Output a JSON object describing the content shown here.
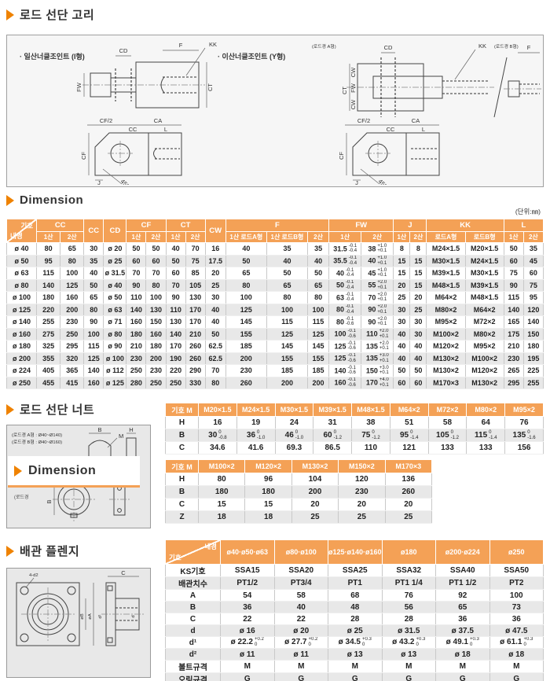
{
  "page": {
    "unit_note": "(단위:㎜)"
  },
  "sections": {
    "rod_end_ring": "로드 선단 고리",
    "dimension": "Dimension",
    "rod_end_nut": "로드 선단 너트",
    "dimension_overlay": "Dimension",
    "pipe_flange": "배관 플렌지"
  },
  "diagrams": {
    "knuckle_i_caption": "· 일산너클조인트 (I형)",
    "knuckle_y_caption": "· 이산너클조인트 (Y형)",
    "rod_a_note": "(로드경 A형)",
    "rod_b_note": "(로드경 B형)",
    "nut_note_a": "(로드경 A형 : Ø40~Ø140)",
    "nut_note_b": "(로드경 B형 : Ø40~Ø160)",
    "nut_partial": "(로드경"
  },
  "dim_labels": {
    "cd": "CD",
    "f": "F",
    "kk": "KK",
    "fw": "FW",
    "ct": "CT",
    "cw": "CW",
    "cf2": "CF/2",
    "ca": "CA",
    "cc": "CC",
    "l": "L",
    "cf": "CF",
    "j": "J",
    "deg": "45°"
  },
  "nut_labels": {
    "b": "B",
    "m": "M",
    "h": "H"
  },
  "flange_labels": {
    "bolt": "4-d2",
    "c": "C",
    "ob": "øB",
    "oa": "øA",
    "d1": "d¹",
    "d": "d"
  },
  "dimension_table": {
    "corner": {
      "top": "기호",
      "bottom": "내경"
    },
    "groups": [
      {
        "label": "CC",
        "cols": [
          "1산",
          "2산"
        ]
      },
      {
        "label": "CC",
        "cols": null
      },
      {
        "label": "CD",
        "cols": null
      },
      {
        "label": "CF",
        "cols": [
          "1산",
          "2산"
        ]
      },
      {
        "label": "CT",
        "cols": [
          "1산",
          "2산"
        ]
      },
      {
        "label": "CW",
        "cols": null
      },
      {
        "label": "F",
        "cols": [
          "1산 로드A형",
          "1산 로드B형",
          "2산"
        ]
      },
      {
        "label": "FW",
        "cols": [
          "1산",
          "2산"
        ]
      },
      {
        "label": "J",
        "cols": [
          "1산",
          "2산"
        ]
      },
      {
        "label": "KK",
        "cols": [
          "로드A형",
          "로드B형"
        ]
      },
      {
        "label": "L",
        "cols": [
          "1산",
          "2산"
        ]
      }
    ],
    "rows": [
      {
        "id": "ø 40",
        "cells": [
          "80",
          "65",
          "30",
          "ø 20",
          "50",
          "50",
          "40",
          "70",
          "16",
          "40",
          "35",
          "35",
          {
            "v": "31.5",
            "t": [
              "-0.1",
              "-0.4"
            ]
          },
          {
            "v": "38",
            "t": [
              "+1.0",
              "+0.1"
            ]
          },
          "8",
          "8",
          "M24×1.5",
          "M20×1.5",
          "50",
          "35"
        ]
      },
      {
        "id": "ø 50",
        "cells": [
          "95",
          "80",
          "35",
          "ø 25",
          "60",
          "60",
          "50",
          "75",
          "17.5",
          "50",
          "40",
          "40",
          {
            "v": "35.5",
            "t": [
              "-0.1",
              "-0.4"
            ]
          },
          {
            "v": "40",
            "t": [
              "+1.0",
              "+0.1"
            ]
          },
          "15",
          "15",
          "M30×1.5",
          "M24×1.5",
          "60",
          "45"
        ]
      },
      {
        "id": "ø 63",
        "cells": [
          "115",
          "100",
          "40",
          "ø 31.5",
          "70",
          "70",
          "60",
          "85",
          "20",
          "65",
          "50",
          "50",
          {
            "v": "40",
            "t": [
              "-0.1",
              "-0.4"
            ]
          },
          {
            "v": "45",
            "t": [
              "+1.0",
              "+0.1"
            ]
          },
          "15",
          "15",
          "M39×1.5",
          "M30×1.5",
          "75",
          "60"
        ]
      },
      {
        "id": "ø 80",
        "cells": [
          "140",
          "125",
          "50",
          "ø 40",
          "90",
          "80",
          "70",
          "105",
          "25",
          "80",
          "65",
          "65",
          {
            "v": "50",
            "t": [
              "-0.1",
              "-0.4"
            ]
          },
          {
            "v": "55",
            "t": [
              "+2.0",
              "+0.1"
            ]
          },
          "20",
          "15",
          "M48×1.5",
          "M39×1.5",
          "90",
          "75"
        ]
      },
      {
        "id": "ø 100",
        "cells": [
          "180",
          "160",
          "65",
          "ø 50",
          "110",
          "100",
          "90",
          "130",
          "30",
          "100",
          "80",
          "80",
          {
            "v": "63",
            "t": [
              "-0.1",
              "-0.4"
            ]
          },
          {
            "v": "70",
            "t": [
              "+2.0",
              "+0.1"
            ]
          },
          "25",
          "20",
          "M64×2",
          "M48×1.5",
          "115",
          "95"
        ]
      },
      {
        "id": "ø 125",
        "cells": [
          "220",
          "200",
          "80",
          "ø 63",
          "140",
          "130",
          "110",
          "170",
          "40",
          "125",
          "100",
          "100",
          {
            "v": "80",
            "t": [
              "-0.1",
              "-0.4"
            ]
          },
          {
            "v": "90",
            "t": [
              "+2.0",
              "+0.1"
            ]
          },
          "30",
          "25",
          "M80×2",
          "M64×2",
          "140",
          "120"
        ]
      },
      {
        "id": "ø 140",
        "cells": [
          "255",
          "230",
          "90",
          "ø 71",
          "160",
          "150",
          "130",
          "170",
          "40",
          "145",
          "115",
          "115",
          {
            "v": "80",
            "t": [
              "-0.1",
              "-0.6"
            ]
          },
          {
            "v": "90",
            "t": [
              "+2.0",
              "+0.1"
            ]
          },
          "30",
          "30",
          "M95×2",
          "M72×2",
          "165",
          "140"
        ]
      },
      {
        "id": "ø 160",
        "cells": [
          "275",
          "250",
          "100",
          "ø 80",
          "180",
          "160",
          "140",
          "210",
          "50",
          "155",
          "125",
          "125",
          {
            "v": "100",
            "t": [
              "-0.1",
              "-0.6"
            ]
          },
          {
            "v": "110",
            "t": [
              "+2.0",
              "+0.1"
            ]
          },
          "40",
          "30",
          "M100×2",
          "M80×2",
          "175",
          "150"
        ]
      },
      {
        "id": "ø 180",
        "cells": [
          "325",
          "295",
          "115",
          "ø 90",
          "210",
          "180",
          "170",
          "260",
          "62.5",
          "185",
          "145",
          "145",
          {
            "v": "125",
            "t": [
              "-0.1",
              "-0.6"
            ]
          },
          {
            "v": "135",
            "t": [
              "+2.0",
              "+0.1"
            ]
          },
          "40",
          "40",
          "M120×2",
          "M95×2",
          "210",
          "180"
        ]
      },
      {
        "id": "ø 200",
        "cells": [
          "355",
          "320",
          "125",
          "ø 100",
          "230",
          "200",
          "190",
          "260",
          "62.5",
          "200",
          "155",
          "155",
          {
            "v": "125",
            "t": [
              "-0.1",
              "-0.6"
            ]
          },
          {
            "v": "135",
            "t": [
              "+3.0",
              "+0.1"
            ]
          },
          "40",
          "40",
          "M130×2",
          "M100×2",
          "230",
          "195"
        ]
      },
      {
        "id": "ø 224",
        "cells": [
          "405",
          "365",
          "140",
          "ø 112",
          "250",
          "230",
          "220",
          "290",
          "70",
          "230",
          "185",
          "185",
          {
            "v": "140",
            "t": [
              "-0.1",
              "-0.6"
            ]
          },
          {
            "v": "150",
            "t": [
              "+3.0",
              "+0.1"
            ]
          },
          "50",
          "50",
          "M130×2",
          "M120×2",
          "265",
          "225"
        ]
      },
      {
        "id": "ø 250",
        "cells": [
          "455",
          "415",
          "160",
          "ø 125",
          "280",
          "250",
          "250",
          "330",
          "80",
          "260",
          "200",
          "200",
          {
            "v": "160",
            "t": [
              "-0.1",
              "-0.6"
            ]
          },
          {
            "v": "170",
            "t": [
              "+4.0",
              "+0.1"
            ]
          },
          "60",
          "60",
          "M170×3",
          "M130×2",
          "295",
          "255"
        ]
      }
    ]
  },
  "nut_table_1": {
    "corner": "기호 M",
    "headers": [
      "M20×1.5",
      "M24×1.5",
      "M30×1.5",
      "M39×1.5",
      "M48×1.5",
      "M64×2",
      "M72×2",
      "M80×2",
      "M95×2"
    ],
    "rows": [
      {
        "label": "H",
        "cells": [
          "16",
          "19",
          "24",
          "31",
          "38",
          "51",
          "58",
          "64",
          "76"
        ]
      },
      {
        "label": "B",
        "cells": [
          {
            "v": "30",
            "t": [
              "0",
              "-0.8"
            ]
          },
          {
            "v": "36",
            "t": [
              "0",
              "-1.0"
            ]
          },
          {
            "v": "46",
            "t": [
              "0",
              "-1.0"
            ]
          },
          {
            "v": "60",
            "t": [
              "0",
              "-1.2"
            ]
          },
          {
            "v": "75",
            "t": [
              "0",
              "-1.2"
            ]
          },
          {
            "v": "95",
            "t": [
              "0",
              "-1.4"
            ]
          },
          {
            "v": "105",
            "t": [
              "0",
              "-1.2"
            ]
          },
          {
            "v": "115",
            "t": [
              "0",
              "-1.4"
            ]
          },
          {
            "v": "135",
            "t": [
              "0",
              "-1.6"
            ]
          }
        ]
      },
      {
        "label": "C",
        "cells": [
          "34.6",
          "41.6",
          "69.3",
          "86.5",
          "110",
          "121",
          "133",
          "133",
          "156"
        ]
      }
    ]
  },
  "nut_table_2": {
    "corner": "기호 M",
    "headers": [
      "M100×2",
      "M120×2",
      "M130×2",
      "M150×2",
      "M170×3"
    ],
    "rows": [
      {
        "label": "H",
        "cells": [
          "80",
          "96",
          "104",
          "120",
          "136"
        ]
      },
      {
        "label": "B",
        "cells": [
          "180",
          "180",
          "200",
          "230",
          "260"
        ]
      },
      {
        "label": "C",
        "cells": [
          "15",
          "15",
          "20",
          "20",
          "20"
        ]
      },
      {
        "label": "Z",
        "cells": [
          "18",
          "18",
          "25",
          "25",
          "25"
        ]
      }
    ]
  },
  "flange_table": {
    "corner": {
      "top": "내경",
      "bottom": "기호"
    },
    "headers": [
      "ø40·ø50·ø63",
      "ø80·ø100",
      "ø125·ø140·ø160",
      "ø180",
      "ø200·ø224",
      "ø250"
    ],
    "rows": [
      {
        "label": "KS기호",
        "cells": [
          "SSA15",
          "SSA20",
          "SSA25",
          "SSA32",
          "SSA40",
          "SSA50"
        ]
      },
      {
        "label": "배관치수",
        "cells": [
          "PT1/2",
          "PT3/4",
          "PT1",
          "PT1 1/4",
          "PT1 1/2",
          "PT2"
        ]
      },
      {
        "label": "A",
        "cells": [
          "54",
          "58",
          "68",
          "76",
          "92",
          "100"
        ]
      },
      {
        "label": "B",
        "cells": [
          "36",
          "40",
          "48",
          "56",
          "65",
          "73"
        ]
      },
      {
        "label": "C",
        "cells": [
          "22",
          "22",
          "28",
          "28",
          "36",
          "36"
        ]
      },
      {
        "label": "d",
        "cells": [
          "ø 16",
          "ø 20",
          "ø 25",
          "ø 31.5",
          "ø 37.5",
          "ø 47.5"
        ]
      },
      {
        "label": "d¹",
        "cells": [
          {
            "v": "ø 22.2",
            "t": [
              "+0.2",
              "0"
            ]
          },
          {
            "v": "ø 27.7",
            "t": [
              "+0.2",
              "0"
            ]
          },
          {
            "v": "ø 34.5",
            "t": [
              "+0.3",
              "0"
            ]
          },
          {
            "v": "ø 43.2",
            "t": [
              "+0.3",
              "0"
            ]
          },
          {
            "v": "ø 49.1",
            "t": [
              "+0.3",
              "0"
            ]
          },
          {
            "v": "ø 61.1",
            "t": [
              "+0.3",
              "0"
            ]
          }
        ]
      },
      {
        "label": "d²",
        "cells": [
          "ø 11",
          "ø 11",
          "ø 13",
          "ø 13",
          "ø 18",
          "ø 18"
        ]
      },
      {
        "label": "볼트규격",
        "cells": [
          "M",
          "M",
          "M",
          "M",
          "M",
          "M"
        ]
      },
      {
        "label": "오링규격",
        "cells": [
          "G",
          "G",
          "G",
          "G",
          "G",
          "G"
        ]
      }
    ]
  }
}
